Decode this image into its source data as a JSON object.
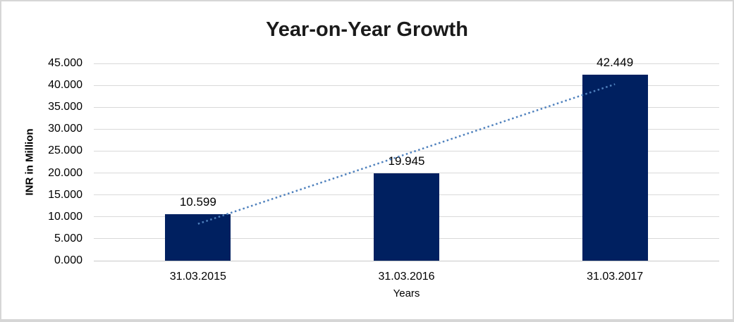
{
  "window": {
    "background": "#ffffff",
    "border_color": "#d6d6d6"
  },
  "chart_data": {
    "type": "bar",
    "title": "Year-on-Year Growth",
    "xlabel": "Years",
    "ylabel": "INR in Million",
    "categories": [
      "31.03.2015",
      "31.03.2016",
      "31.03.2017"
    ],
    "values": [
      10.599,
      19.945,
      42.449
    ],
    "data_labels": [
      "10.599",
      "19.945",
      "42.449"
    ],
    "ylim": [
      0,
      45
    ],
    "ytick_step": 5,
    "ytick_labels": [
      "0.000",
      "5.000",
      "10.000",
      "15.000",
      "20.000",
      "25.000",
      "30.000",
      "35.000",
      "40.000",
      "45.000"
    ],
    "grid": true,
    "legend": "none",
    "bar_color": "#002060",
    "gridline_color": "#d9d9d9",
    "trendline": {
      "type": "linear",
      "style": "dotted",
      "color": "#4f81bd",
      "start_value": 8.41,
      "end_value": 40.26
    }
  }
}
